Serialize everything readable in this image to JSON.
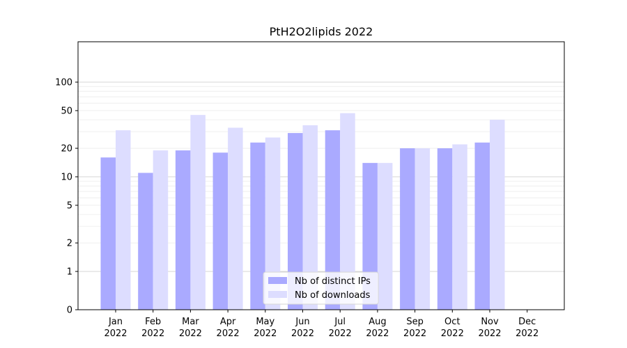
{
  "chart_data": {
    "type": "bar",
    "title": "PtH2O2lipids 2022",
    "xlabel": "",
    "ylabel": "",
    "y_scale": "symlog",
    "ylim": [
      0,
      120
    ],
    "y_ticks": [
      0,
      1,
      2,
      5,
      10,
      20,
      50,
      100
    ],
    "grid": "horizontal",
    "legend_position": "lower-center",
    "categories": [
      {
        "month": "Jan",
        "year": "2022"
      },
      {
        "month": "Feb",
        "year": "2022"
      },
      {
        "month": "Mar",
        "year": "2022"
      },
      {
        "month": "Apr",
        "year": "2022"
      },
      {
        "month": "May",
        "year": "2022"
      },
      {
        "month": "Jun",
        "year": "2022"
      },
      {
        "month": "Jul",
        "year": "2022"
      },
      {
        "month": "Aug",
        "year": "2022"
      },
      {
        "month": "Sep",
        "year": "2022"
      },
      {
        "month": "Oct",
        "year": "2022"
      },
      {
        "month": "Nov",
        "year": "2022"
      },
      {
        "month": "Dec",
        "year": "2022"
      }
    ],
    "series": [
      {
        "name": "Nb of distinct IPs",
        "color": "#aaaaff",
        "values": [
          16,
          11,
          19,
          18,
          23,
          29,
          31,
          14,
          20,
          20,
          23,
          0
        ]
      },
      {
        "name": "Nb of downloads",
        "color": "#ddddff",
        "values": [
          31,
          19,
          45,
          33,
          26,
          35,
          47,
          14,
          20,
          22,
          40,
          0
        ]
      }
    ]
  }
}
